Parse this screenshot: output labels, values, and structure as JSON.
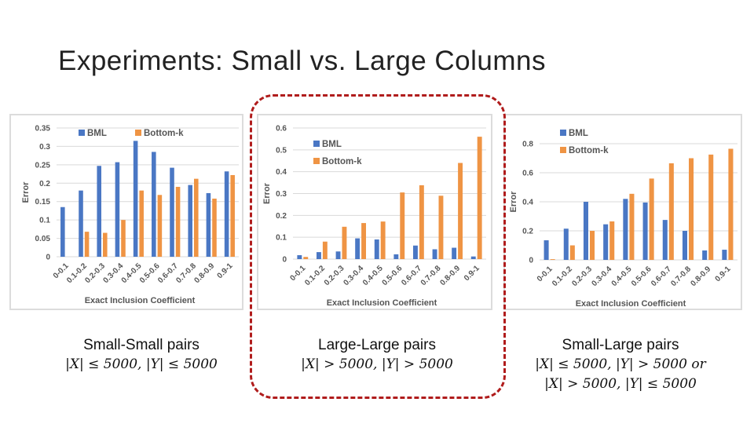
{
  "slide": {
    "title": "Experiments: Small vs. Large Columns"
  },
  "colors": {
    "bml": "#4a77c4",
    "bottomk": "#ef9444",
    "grid": "#d9d9d9",
    "highlight": "#b01c1c"
  },
  "captions": [
    {
      "title": "Small-Small pairs",
      "lines": [
        "|X| ≤ 5000, |Y| ≤ 5000"
      ]
    },
    {
      "title": "Large-Large pairs",
      "lines": [
        "|X| > 5000, |Y| > 5000"
      ]
    },
    {
      "title": "Small-Large pairs",
      "lines": [
        "|X| ≤ 5000, |Y| > 5000 or",
        "|X| > 5000, |Y| ≤ 5000"
      ]
    }
  ],
  "chart_data": [
    {
      "type": "bar",
      "ylabel": "Error",
      "xlabel": "Exact Inclusion Coefficient",
      "categories": [
        "0-0.1",
        "0.1-0.2",
        "0.2-0.3",
        "0.3-0.4",
        "0.4-0.5",
        "0.5-0.6",
        "0.6-0.7",
        "0.7-0.8",
        "0.8-0.9",
        "0.9-1"
      ],
      "ylim": [
        0,
        0.35
      ],
      "yticks": [
        "0",
        "0.05",
        "0.1",
        "0.15",
        "0.2",
        "0.25",
        "0.3",
        "0.35"
      ],
      "legend": "top-left",
      "grid": true,
      "series": [
        {
          "name": "BML",
          "values": [
            0.135,
            0.18,
            0.247,
            0.257,
            0.315,
            0.285,
            0.242,
            0.195,
            0.173,
            0.232
          ]
        },
        {
          "name": "Bottom-k",
          "values": [
            0,
            0.068,
            0.065,
            0.1,
            0.18,
            0.168,
            0.19,
            0.212,
            0.158,
            0.222
          ]
        }
      ]
    },
    {
      "type": "bar",
      "ylabel": "Error",
      "xlabel": "Exact Inclusion Coefficient",
      "categories": [
        "0-0.1",
        "0.1-0.2",
        "0.2-0.3",
        "0.3-0.4",
        "0.4-0.5",
        "0.5-0.6",
        "0.6-0.7",
        "0.7-0.8",
        "0.8-0.9",
        "0.9-1"
      ],
      "ylim": [
        0,
        0.6
      ],
      "yticks": [
        "0",
        "0.1",
        "0.2",
        "0.3",
        "0.4",
        "0.5",
        "0.6"
      ],
      "legend": "top-left",
      "grid": true,
      "series": [
        {
          "name": "BML",
          "values": [
            0.018,
            0.032,
            0.035,
            0.095,
            0.09,
            0.022,
            0.062,
            0.045,
            0.052,
            0.012
          ]
        },
        {
          "name": "Bottom-k",
          "values": [
            0.01,
            0.08,
            0.148,
            0.165,
            0.172,
            0.305,
            0.338,
            0.29,
            0.44,
            0.56
          ]
        }
      ]
    },
    {
      "type": "bar",
      "ylabel": "Error",
      "xlabel": "Exact Inclusion Coefficient",
      "categories": [
        "0-0.1",
        "0.1-0.2",
        "0.2-0.3",
        "0.3-0.4",
        "0.4-0.5",
        "0.5-0.6",
        "0.6-0.7",
        "0.7-0.8",
        "0.8-0.9",
        "0.9-1"
      ],
      "ylim": [
        0,
        0.8
      ],
      "yticks": [
        "0",
        "0.2",
        "0.4",
        "0.6",
        "0.8"
      ],
      "legend": "top-left",
      "grid": true,
      "series": [
        {
          "name": "BML",
          "values": [
            0.135,
            0.215,
            0.4,
            0.245,
            0.42,
            0.395,
            0.275,
            0.2,
            0.065,
            0.07
          ]
        },
        {
          "name": "Bottom-k",
          "values": [
            0.005,
            0.1,
            0.2,
            0.265,
            0.455,
            0.56,
            0.665,
            0.7,
            0.725,
            0.765
          ]
        }
      ]
    }
  ]
}
